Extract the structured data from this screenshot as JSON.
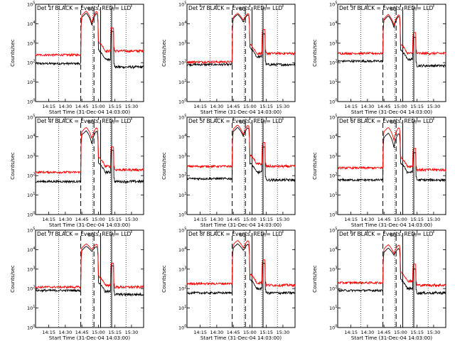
{
  "chart_data": [
    {
      "type": "line",
      "title": "Det 1f BLACK = Events, RED = LLD",
      "xlabel": "Start Time (31-Dec-04 14:03:00)",
      "ylabel": "Counts/sec",
      "x_ticks": [
        "14:15",
        "14:30",
        "14:45",
        "15:00",
        "15:15",
        "15:30"
      ],
      "y_ticks": [
        "10^0",
        "10^1",
        "10^2",
        "10^3",
        "10^4",
        "10^5"
      ],
      "yscale": "log",
      "ylim": [
        1,
        100000
      ],
      "series": [
        {
          "name": "Events",
          "color": "#000000",
          "baseline": 90,
          "flare_peak": 35000,
          "flare_dip": 8000,
          "post_level": 150,
          "post_peak": 4000,
          "tail": 60
        },
        {
          "name": "LLD",
          "color": "#ff0000",
          "baseline": 250,
          "flare_peak": 45000,
          "flare_dip": 10000,
          "post_level": 400,
          "post_peak": 6000,
          "tail": 400
        }
      ],
      "markers": {
        "dashed": [
          "14:44",
          "14:56"
        ],
        "solid": [
          "15:02",
          "15:12"
        ],
        "dotted": [
          "14:24",
          "14:55",
          "15:11",
          "15:25"
        ],
        "flags": [
          "SO",
          "F"
        ]
      }
    },
    {
      "type": "line",
      "title": "Det 2f BLACK = Events, RED = LLD",
      "xlabel": "Start Time (31-Dec-04 14:03:00)",
      "ylabel": "Counts/sec",
      "x_ticks": [
        "14:15",
        "14:30",
        "14:45",
        "15:00",
        "15:15",
        "15:30"
      ],
      "y_ticks": [
        "10^0",
        "10^1",
        "10^2",
        "10^3",
        "10^4",
        "10^5"
      ],
      "yscale": "log",
      "ylim": [
        1,
        100000
      ],
      "series": [
        {
          "name": "Events",
          "color": "#000000",
          "baseline": 80,
          "flare_peak": 30000,
          "flare_dip": 12000,
          "post_level": 200,
          "post_peak": 3000,
          "tail": 80
        },
        {
          "name": "LLD",
          "color": "#ff0000",
          "baseline": 110,
          "flare_peak": 35000,
          "flare_dip": 15000,
          "post_level": 300,
          "post_peak": 5000,
          "tail": 300
        }
      ],
      "markers": {
        "dashed": [
          "14:44",
          "14:56"
        ],
        "solid": [
          "15:02",
          "15:12"
        ],
        "dotted": [
          "14:24",
          "14:55",
          "15:11",
          "15:25"
        ],
        "flags": [
          "SO",
          "F"
        ]
      }
    },
    {
      "type": "line",
      "title": "Det 3f BLACK = Events, RED = LLD",
      "xlabel": "Start Time (31-Dec-04 14:03:00)",
      "ylabel": "Counts/sec",
      "x_ticks": [
        "14:15",
        "14:30",
        "14:45",
        "15:00",
        "15:15",
        "15:30"
      ],
      "y_ticks": [
        "10^0",
        "10^1",
        "10^2",
        "10^3",
        "10^4",
        "10^5"
      ],
      "yscale": "log",
      "ylim": [
        1,
        100000
      ],
      "series": [
        {
          "name": "Events",
          "color": "#000000",
          "baseline": 120,
          "flare_peak": 25000,
          "flare_dip": 6000,
          "post_level": 150,
          "post_peak": 2000,
          "tail": 70
        },
        {
          "name": "LLD",
          "color": "#ff0000",
          "baseline": 300,
          "flare_peak": 30000,
          "flare_dip": 8000,
          "post_level": 300,
          "post_peak": 3500,
          "tail": 300
        }
      ],
      "markers": {
        "dashed": [
          "14:44",
          "14:56"
        ],
        "solid": [
          "15:02",
          "15:12"
        ],
        "dotted": [
          "14:24",
          "14:55",
          "15:11",
          "15:25"
        ],
        "flags": [
          "SO",
          "F"
        ]
      }
    },
    {
      "type": "line",
      "title": "Det 4f BLACK = Events, RED = LLD",
      "xlabel": "Start Time (31-Dec-04 14:03:00)",
      "ylabel": "Counts/sec",
      "x_ticks": [
        "14:15",
        "14:30",
        "14:45",
        "15:00",
        "15:15",
        "15:30"
      ],
      "y_ticks": [
        "10^0",
        "10^1",
        "10^2",
        "10^3",
        "10^4",
        "10^5"
      ],
      "yscale": "log",
      "ylim": [
        1,
        100000
      ],
      "series": [
        {
          "name": "Events",
          "color": "#000000",
          "baseline": 50,
          "flare_peak": 20000,
          "flare_dip": 4000,
          "post_level": 150,
          "post_peak": 2000,
          "tail": 50
        },
        {
          "name": "LLD",
          "color": "#ff0000",
          "baseline": 150,
          "flare_peak": 30000,
          "flare_dip": 8000,
          "post_level": 300,
          "post_peak": 3000,
          "tail": 200
        }
      ],
      "markers": {
        "dashed": [
          "14:44",
          "14:56"
        ],
        "solid": [
          "15:02",
          "15:12"
        ],
        "dotted": [
          "14:24",
          "14:55",
          "15:11",
          "15:25"
        ],
        "flags": [
          "SO",
          "F"
        ]
      }
    },
    {
      "type": "line",
      "title": "Det 5f BLACK = Events, RED = LLD",
      "xlabel": "Start Time (31-Dec-04 14:03:00)",
      "ylabel": "Counts/sec",
      "x_ticks": [
        "14:15",
        "14:30",
        "14:45",
        "15:00",
        "15:15",
        "15:30"
      ],
      "y_ticks": [
        "10^0",
        "10^1",
        "10^2",
        "10^3",
        "10^4",
        "10^5"
      ],
      "yscale": "log",
      "ylim": [
        1,
        100000
      ],
      "series": [
        {
          "name": "Events",
          "color": "#000000",
          "baseline": 70,
          "flare_peak": 30000,
          "flare_dip": 10000,
          "post_level": 150,
          "post_peak": 3000,
          "tail": 60
        },
        {
          "name": "LLD",
          "color": "#ff0000",
          "baseline": 300,
          "flare_peak": 40000,
          "flare_dip": 12000,
          "post_level": 400,
          "post_peak": 5000,
          "tail": 300
        }
      ],
      "markers": {
        "dashed": [
          "14:44",
          "14:56"
        ],
        "solid": [
          "15:02",
          "15:12"
        ],
        "dotted": [
          "14:24",
          "14:55",
          "15:11",
          "15:25"
        ],
        "flags": [
          "SO",
          "F"
        ]
      }
    },
    {
      "type": "line",
      "title": "Det 6f BLACK = Events, RED = LLD",
      "xlabel": "Start Time (31-Dec-04 14:03:00)",
      "ylabel": "Counts/sec",
      "x_ticks": [
        "14:15",
        "14:30",
        "14:45",
        "15:00",
        "15:15",
        "15:30"
      ],
      "y_ticks": [
        "10^0",
        "10^1",
        "10^2",
        "10^3",
        "10^4",
        "10^5"
      ],
      "yscale": "log",
      "ylim": [
        1,
        100000
      ],
      "series": [
        {
          "name": "Events",
          "color": "#000000",
          "baseline": 60,
          "flare_peak": 15000,
          "flare_dip": 2500,
          "post_level": 150,
          "post_peak": 1500,
          "tail": 60
        },
        {
          "name": "LLD",
          "color": "#ff0000",
          "baseline": 250,
          "flare_peak": 30000,
          "flare_dip": 6000,
          "post_level": 300,
          "post_peak": 2500,
          "tail": 200
        }
      ],
      "markers": {
        "dashed": [
          "14:44",
          "14:56"
        ],
        "solid": [
          "15:02",
          "15:12"
        ],
        "dotted": [
          "14:24",
          "14:55",
          "15:11",
          "15:25"
        ],
        "flags": [
          "SO",
          "F"
        ]
      }
    },
    {
      "type": "line",
      "title": "Det 7f BLACK = Events, RED = LLD",
      "xlabel": "Start Time (31-Dec-04 14:03:00)",
      "ylabel": "Counts/sec",
      "x_ticks": [
        "14:15",
        "14:30",
        "14:45",
        "15:00",
        "15:15",
        "15:30"
      ],
      "y_ticks": [
        "10^0",
        "10^1",
        "10^2",
        "10^3",
        "10^4",
        "10^5"
      ],
      "yscale": "log",
      "ylim": [
        1,
        100000
      ],
      "series": [
        {
          "name": "Events",
          "color": "#000000",
          "baseline": 80,
          "flare_peak": 15000,
          "flare_dip": 8000,
          "post_level": 70,
          "post_peak": 1500,
          "tail": 50
        },
        {
          "name": "LLD",
          "color": "#ff0000",
          "baseline": 120,
          "flare_peak": 20000,
          "flare_dip": 10000,
          "post_level": 150,
          "post_peak": 2000,
          "tail": 120
        }
      ],
      "markers": {
        "dashed": [
          "14:44",
          "14:56"
        ],
        "solid": [
          "15:02",
          "15:12"
        ],
        "dotted": [
          "14:24",
          "14:55",
          "15:11",
          "15:25"
        ],
        "flags": [
          "SO",
          "F"
        ]
      }
    },
    {
      "type": "line",
      "title": "Det 8f BLACK = Events, RED = LLD",
      "xlabel": "Start Time (31-Dec-04 14:03:00)",
      "ylabel": "Counts/sec",
      "x_ticks": [
        "14:15",
        "14:30",
        "14:45",
        "15:00",
        "15:15",
        "15:30"
      ],
      "y_ticks": [
        "10^0",
        "10^1",
        "10^2",
        "10^3",
        "10^4",
        "10^5"
      ],
      "yscale": "log",
      "ylim": [
        1,
        100000
      ],
      "series": [
        {
          "name": "Events",
          "color": "#000000",
          "baseline": 60,
          "flare_peak": 20000,
          "flare_dip": 9000,
          "post_level": 100,
          "post_peak": 2000,
          "tail": 60
        },
        {
          "name": "LLD",
          "color": "#ff0000",
          "baseline": 180,
          "flare_peak": 30000,
          "flare_dip": 12000,
          "post_level": 200,
          "post_peak": 3000,
          "tail": 150
        }
      ],
      "markers": {
        "dashed": [
          "14:44",
          "14:56"
        ],
        "solid": [
          "15:02",
          "15:12"
        ],
        "dotted": [
          "14:24",
          "14:55",
          "15:11",
          "15:25"
        ],
        "flags": [
          "SO",
          "F"
        ]
      }
    },
    {
      "type": "line",
      "title": "Det 9f BLACK = Events, RED = LLD",
      "xlabel": "Start Time (31-Dec-04 14:03:00)",
      "ylabel": "Counts/sec",
      "x_ticks": [
        "14:15",
        "14:30",
        "14:45",
        "15:00",
        "15:15",
        "15:30"
      ],
      "y_ticks": [
        "10^0",
        "10^1",
        "10^2",
        "10^3",
        "10^4",
        "10^5"
      ],
      "yscale": "log",
      "ylim": [
        1,
        100000
      ],
      "series": [
        {
          "name": "Events",
          "color": "#000000",
          "baseline": 80,
          "flare_peak": 12000,
          "flare_dip": 5000,
          "post_level": 100,
          "post_peak": 1000,
          "tail": 60
        },
        {
          "name": "LLD",
          "color": "#ff0000",
          "baseline": 200,
          "flare_peak": 18000,
          "flare_dip": 6000,
          "post_level": 250,
          "post_peak": 1800,
          "tail": 150
        }
      ],
      "markers": {
        "dashed": [
          "14:44",
          "14:56"
        ],
        "solid": [
          "15:02",
          "15:12"
        ],
        "dotted": [
          "14:24",
          "14:55",
          "15:11",
          "15:25"
        ],
        "flags": [
          "SO",
          "F"
        ]
      }
    }
  ]
}
